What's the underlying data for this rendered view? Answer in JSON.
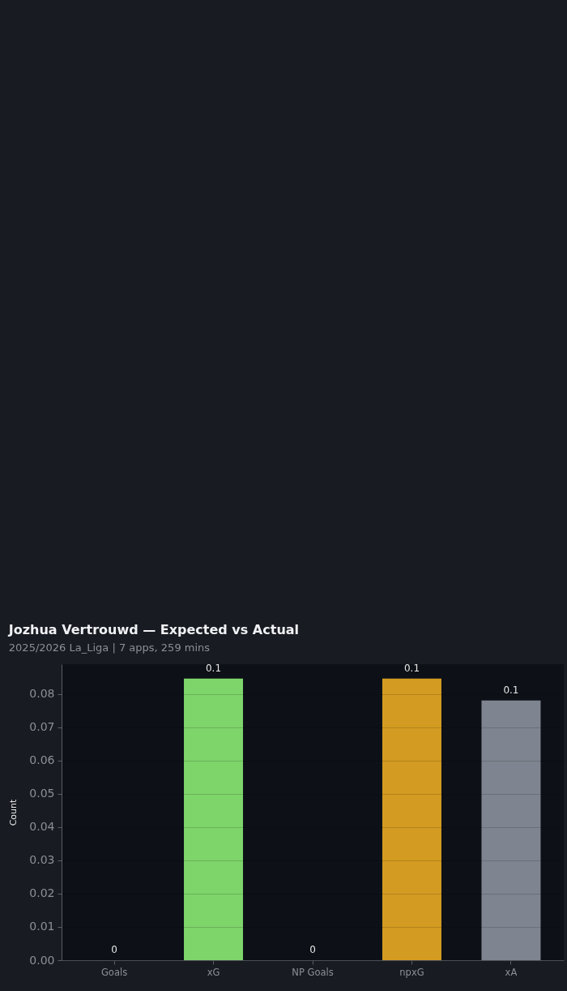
{
  "chart_data": {
    "type": "bar",
    "title": "Jozhua Vertrouwd — Expected vs Actual",
    "subtitle": "2025/2026 La_Liga | 7 apps, 259 mins",
    "ylabel": "Count",
    "categories": [
      "Goals",
      "xG",
      "NP Goals",
      "npxG",
      "xA"
    ],
    "values": [
      0,
      0.0847,
      0,
      0.0847,
      0.0781
    ],
    "colors": [
      "#7ed56a",
      "#7ed56a",
      "#d49b22",
      "#d49b22",
      "#7f8590"
    ],
    "value_labels": [
      "0",
      "0.1",
      "0",
      "0.1",
      "0.1"
    ],
    "ylim": [
      0,
      0.089
    ],
    "yticks": [
      {
        "value": 0,
        "label": "0.00"
      },
      0.01,
      0.02,
      0.03,
      0.04,
      0.05,
      0.06,
      0.07,
      0.08
    ],
    "grid": "y"
  }
}
